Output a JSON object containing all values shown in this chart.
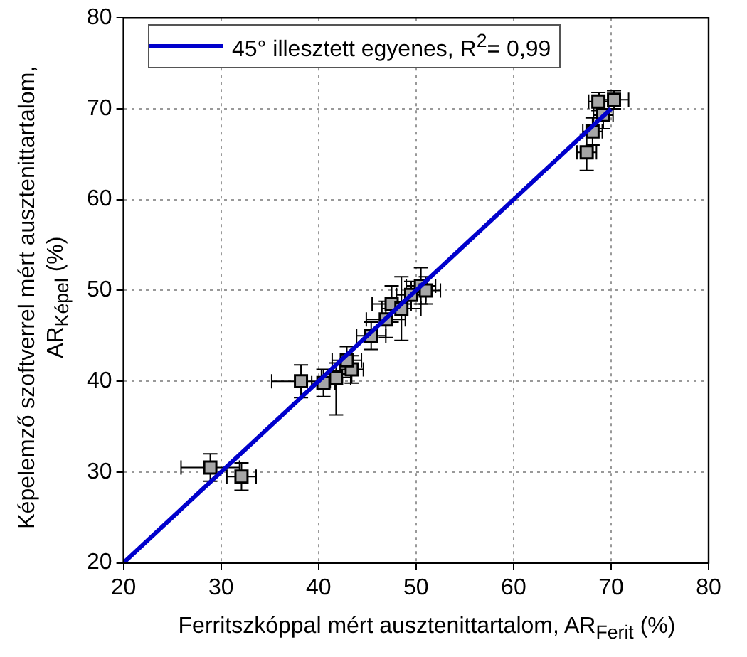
{
  "chart_data": {
    "type": "scatter",
    "xlabel": "Ferritszkóppal mért ausztenittartalom, AR$_{Ferit}$ (%)",
    "ylabel": "Képelemző szoftverrel mért ausztenittartalom, AR$_{Képel}$ (%)",
    "xlim": [
      20,
      80
    ],
    "ylim": [
      20,
      80
    ],
    "xticks": [
      20,
      30,
      40,
      50,
      60,
      70,
      80
    ],
    "yticks": [
      20,
      30,
      40,
      50,
      60,
      70,
      80
    ],
    "grid": true,
    "legend": "top left",
    "marker": "square",
    "series": [
      {
        "color": "#a6a6a6",
        "x": [
          28.9,
          32.1,
          38.2,
          40.5,
          41.8,
          43.4,
          42.9,
          45.4,
          46.9,
          47.5,
          48.5,
          49.5,
          50.5,
          51,
          67.5,
          68.1,
          69.2,
          70.3,
          68.7
        ],
        "values": [
          30.5,
          29.5,
          40.0,
          39.8,
          40.4,
          41.3,
          42.3,
          45.0,
          46.8,
          48.5,
          48,
          49.5,
          50.5,
          50,
          65.2,
          67.5,
          69.3,
          71.0,
          70.8
        ],
        "errors": [
          1.5,
          1.5,
          1.8,
          1.5,
          [
            36.3,
            42
          ],
          1.5,
          1.5,
          1.5,
          2,
          2,
          3.5,
          1.5,
          2,
          1.5,
          2,
          1.5,
          1.5,
          1,
          1
        ],
        "xerrors": [
          3,
          1.5,
          3,
          1.2,
          1.5,
          1.2,
          1.5,
          1.5,
          2,
          2,
          2,
          1.5,
          1.5,
          1.5,
          1,
          1,
          1,
          1.5,
          1
        ]
      },
      {
        "type": "line",
        "marker": "none",
        "name": "45° illesztett egyenes, R$^{2}$= 0,99",
        "color": "#0000cc",
        "x": [
          20,
          70
        ],
        "values": [
          20,
          70
        ]
      }
    ]
  }
}
